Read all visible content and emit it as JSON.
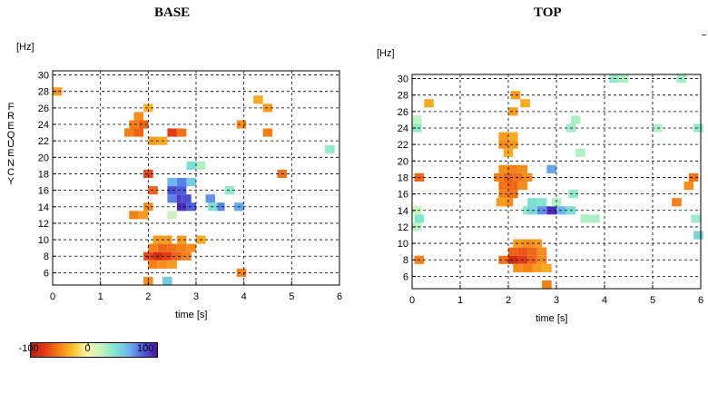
{
  "chart_data": [
    {
      "type": "heatmap",
      "title": "BASE",
      "xlabel": "time [s]",
      "ylabel": "FREQUENCY",
      "unit_label": "[Hz]",
      "xlim": [
        0,
        6
      ],
      "ylim": [
        4.5,
        30.5
      ],
      "xticks": [
        0,
        1,
        2,
        3,
        4,
        5,
        6
      ],
      "yticks": [
        6,
        8,
        10,
        12,
        14,
        16,
        18,
        20,
        22,
        24,
        26,
        28,
        30
      ],
      "grid": true,
      "cells": [
        {
          "t": 0.1,
          "f": 28,
          "v": -40
        },
        {
          "t": 1.8,
          "f": 25,
          "v": -45
        },
        {
          "t": 1.7,
          "f": 24,
          "v": -50
        },
        {
          "t": 1.9,
          "f": 24,
          "v": -60
        },
        {
          "t": 1.6,
          "f": 23,
          "v": -50
        },
        {
          "t": 1.8,
          "f": 23,
          "v": -60
        },
        {
          "t": 2.0,
          "f": 26,
          "v": -30
        },
        {
          "t": 2.5,
          "f": 23,
          "v": -75
        },
        {
          "t": 2.7,
          "f": 23,
          "v": -55
        },
        {
          "t": 2.1,
          "f": 22,
          "v": -40
        },
        {
          "t": 2.3,
          "f": 22,
          "v": -35
        },
        {
          "t": 4.3,
          "f": 27,
          "v": -35
        },
        {
          "t": 4.5,
          "f": 26,
          "v": -40
        },
        {
          "t": 3.95,
          "f": 24,
          "v": -45
        },
        {
          "t": 4.5,
          "f": 23,
          "v": -50
        },
        {
          "t": 4.8,
          "f": 18,
          "v": -55
        },
        {
          "t": 5.8,
          "f": 21,
          "v": 40
        },
        {
          "t": 2.0,
          "f": 18,
          "v": -70
        },
        {
          "t": 2.1,
          "f": 16,
          "v": -60
        },
        {
          "t": 2.0,
          "f": 14,
          "v": -45
        },
        {
          "t": 1.7,
          "f": 13,
          "v": -50
        },
        {
          "t": 1.9,
          "f": 13,
          "v": -40
        },
        {
          "t": 2.5,
          "f": 13,
          "v": 20
        },
        {
          "t": 2.9,
          "f": 19,
          "v": 50
        },
        {
          "t": 3.1,
          "f": 19,
          "v": 30
        },
        {
          "t": 2.5,
          "f": 17,
          "v": 70
        },
        {
          "t": 2.7,
          "f": 17,
          "v": 85
        },
        {
          "t": 2.9,
          "f": 17,
          "v": 60
        },
        {
          "t": 2.5,
          "f": 16,
          "v": 100
        },
        {
          "t": 2.7,
          "f": 16,
          "v": 95
        },
        {
          "t": 2.6,
          "f": 15,
          "v": 105
        },
        {
          "t": 2.8,
          "f": 15,
          "v": 100
        },
        {
          "t": 2.5,
          "f": 15,
          "v": 85
        },
        {
          "t": 2.7,
          "f": 14,
          "v": 110
        },
        {
          "t": 2.9,
          "f": 14,
          "v": 95
        },
        {
          "t": 3.3,
          "f": 15,
          "v": 80
        },
        {
          "t": 3.5,
          "f": 14,
          "v": 85
        },
        {
          "t": 3.35,
          "f": 14,
          "v": 50
        },
        {
          "t": 3.7,
          "f": 16,
          "v": 40
        },
        {
          "t": 3.9,
          "f": 14,
          "v": 75
        },
        {
          "t": 2.2,
          "f": 10,
          "v": -40
        },
        {
          "t": 2.4,
          "f": 10,
          "v": -40
        },
        {
          "t": 2.7,
          "f": 10,
          "v": -40
        },
        {
          "t": 3.1,
          "f": 10,
          "v": -35
        },
        {
          "t": 2.1,
          "f": 9,
          "v": -50
        },
        {
          "t": 2.3,
          "f": 9,
          "v": -60
        },
        {
          "t": 2.5,
          "f": 9,
          "v": -55
        },
        {
          "t": 2.7,
          "f": 9,
          "v": -50
        },
        {
          "t": 2.9,
          "f": 9,
          "v": -45
        },
        {
          "t": 2.0,
          "f": 8,
          "v": -70
        },
        {
          "t": 2.2,
          "f": 8,
          "v": -85
        },
        {
          "t": 2.4,
          "f": 8,
          "v": -75
        },
        {
          "t": 2.6,
          "f": 8,
          "v": -60
        },
        {
          "t": 2.8,
          "f": 8,
          "v": -50
        },
        {
          "t": 2.1,
          "f": 7,
          "v": -50
        },
        {
          "t": 2.3,
          "f": 7,
          "v": -45
        },
        {
          "t": 2.5,
          "f": 7,
          "v": -40
        },
        {
          "t": 3.95,
          "f": 6,
          "v": -50
        },
        {
          "t": 2.0,
          "f": 5,
          "v": -45
        },
        {
          "t": 2.4,
          "f": 5,
          "v": 60
        }
      ]
    },
    {
      "type": "heatmap",
      "title": "TOP",
      "xlabel": "time [s]",
      "unit_label": "[Hz]",
      "xlim": [
        0,
        6
      ],
      "ylim": [
        4.5,
        30.5
      ],
      "xticks": [
        0,
        1,
        2,
        3,
        4,
        5,
        6
      ],
      "yticks": [
        6,
        8,
        10,
        12,
        14,
        16,
        18,
        20,
        22,
        24,
        26,
        28,
        30
      ],
      "grid": true,
      "cells": [
        {
          "t": 4.2,
          "f": 30,
          "v": 40
        },
        {
          "t": 4.4,
          "f": 30,
          "v": 30
        },
        {
          "t": 5.6,
          "f": 30,
          "v": 35
        },
        {
          "t": 0.35,
          "f": 27,
          "v": -35
        },
        {
          "t": 2.15,
          "f": 28,
          "v": -40
        },
        {
          "t": 2.35,
          "f": 27,
          "v": -35
        },
        {
          "t": 2.1,
          "f": 26,
          "v": -40
        },
        {
          "t": 0.1,
          "f": 25,
          "v": 25
        },
        {
          "t": 0.1,
          "f": 24,
          "v": 40
        },
        {
          "t": 3.4,
          "f": 25,
          "v": 30
        },
        {
          "t": 3.3,
          "f": 24,
          "v": 35
        },
        {
          "t": 5.1,
          "f": 24,
          "v": 30
        },
        {
          "t": 5.95,
          "f": 24,
          "v": 40
        },
        {
          "t": 1.9,
          "f": 23,
          "v": -40
        },
        {
          "t": 2.1,
          "f": 23,
          "v": -35
        },
        {
          "t": 1.9,
          "f": 22,
          "v": -45
        },
        {
          "t": 2.1,
          "f": 22,
          "v": -40
        },
        {
          "t": 2.0,
          "f": 21,
          "v": -35
        },
        {
          "t": 3.5,
          "f": 21,
          "v": 30
        },
        {
          "t": 1.9,
          "f": 19,
          "v": -45
        },
        {
          "t": 2.1,
          "f": 19,
          "v": -50
        },
        {
          "t": 2.3,
          "f": 19,
          "v": -45
        },
        {
          "t": 1.8,
          "f": 18,
          "v": -50
        },
        {
          "t": 2.0,
          "f": 18,
          "v": -60
        },
        {
          "t": 2.2,
          "f": 18,
          "v": -55
        },
        {
          "t": 2.4,
          "f": 18,
          "v": -45
        },
        {
          "t": 1.9,
          "f": 17,
          "v": -55
        },
        {
          "t": 2.1,
          "f": 17,
          "v": -60
        },
        {
          "t": 2.3,
          "f": 17,
          "v": -45
        },
        {
          "t": 1.9,
          "f": 16,
          "v": -50
        },
        {
          "t": 2.1,
          "f": 16,
          "v": -55
        },
        {
          "t": 2.0,
          "f": 15,
          "v": -45
        },
        {
          "t": 1.85,
          "f": 15,
          "v": -40
        },
        {
          "t": 2.9,
          "f": 19,
          "v": 75
        },
        {
          "t": 0.15,
          "f": 18,
          "v": -60
        },
        {
          "t": 5.85,
          "f": 18,
          "v": -55
        },
        {
          "t": 5.75,
          "f": 17,
          "v": -45
        },
        {
          "t": 5.5,
          "f": 15,
          "v": -50
        },
        {
          "t": 3.35,
          "f": 16,
          "v": 40
        },
        {
          "t": 2.5,
          "f": 15,
          "v": 50
        },
        {
          "t": 2.7,
          "f": 15,
          "v": 45
        },
        {
          "t": 2.4,
          "f": 14,
          "v": 40
        },
        {
          "t": 2.7,
          "f": 14,
          "v": 80
        },
        {
          "t": 2.9,
          "f": 14,
          "v": 110
        },
        {
          "t": 3.1,
          "f": 14,
          "v": 70
        },
        {
          "t": 3.3,
          "f": 14,
          "v": 50
        },
        {
          "t": 2.5,
          "f": 14,
          "v": 55
        },
        {
          "t": 3.0,
          "f": 15,
          "v": 30
        },
        {
          "t": 3.6,
          "f": 13,
          "v": 30
        },
        {
          "t": 3.8,
          "f": 13,
          "v": 30
        },
        {
          "t": 0.1,
          "f": 14,
          "v": 20
        },
        {
          "t": 0.15,
          "f": 13,
          "v": 45
        },
        {
          "t": 0.1,
          "f": 12,
          "v": 25
        },
        {
          "t": 5.9,
          "f": 13,
          "v": 35
        },
        {
          "t": 5.95,
          "f": 11,
          "v": 55
        },
        {
          "t": 2.2,
          "f": 10,
          "v": -40
        },
        {
          "t": 2.4,
          "f": 10,
          "v": -45
        },
        {
          "t": 2.6,
          "f": 10,
          "v": -40
        },
        {
          "t": 2.1,
          "f": 9,
          "v": -60
        },
        {
          "t": 2.3,
          "f": 9,
          "v": -65
        },
        {
          "t": 2.5,
          "f": 9,
          "v": -60
        },
        {
          "t": 2.7,
          "f": 9,
          "v": -45
        },
        {
          "t": 1.9,
          "f": 8,
          "v": -55
        },
        {
          "t": 2.1,
          "f": 8,
          "v": -85
        },
        {
          "t": 2.3,
          "f": 8,
          "v": -75
        },
        {
          "t": 2.5,
          "f": 8,
          "v": -60
        },
        {
          "t": 2.7,
          "f": 8,
          "v": -45
        },
        {
          "t": 2.2,
          "f": 7,
          "v": -45
        },
        {
          "t": 2.4,
          "f": 7,
          "v": -50
        },
        {
          "t": 2.6,
          "f": 7,
          "v": -40
        },
        {
          "t": 2.8,
          "f": 7,
          "v": -35
        },
        {
          "t": 0.15,
          "f": 8,
          "v": -50
        },
        {
          "t": 2.8,
          "f": 5,
          "v": -50
        }
      ]
    }
  ],
  "colorbar": {
    "range": [
      -100,
      120
    ],
    "tick_values": [
      -100,
      0,
      100
    ],
    "tick_labels": [
      "-100",
      "0",
      "100"
    ],
    "stops": [
      "#b21e0c",
      "#e23a14",
      "#f47d18",
      "#fbc12a",
      "#fbf7a6",
      "#c8f2c0",
      "#7ee6cf",
      "#6eb3ee",
      "#4d5bdc",
      "#4a11a6"
    ]
  }
}
